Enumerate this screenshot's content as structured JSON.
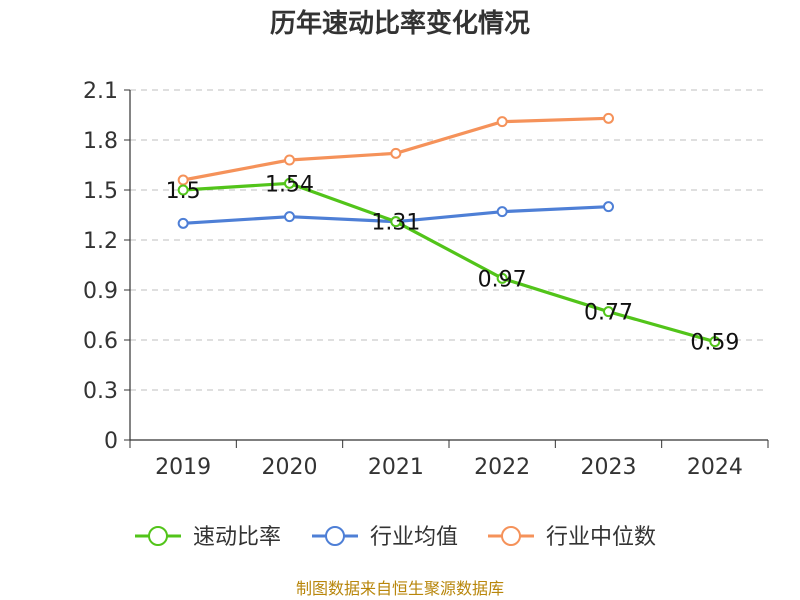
{
  "chart_data": {
    "type": "line",
    "title": "历年速动比率变化情况",
    "categories": [
      "2019",
      "2020",
      "2021",
      "2022",
      "2023",
      "2024"
    ],
    "y_ticks": [
      "0",
      "0.3",
      "0.6",
      "0.9",
      "1.2",
      "1.5",
      "1.8",
      "2.1"
    ],
    "ylim": [
      0,
      2.1
    ],
    "grid": true,
    "legend_position": "bottom",
    "series": [
      {
        "name": "速动比率",
        "color": "#52c41a",
        "values": [
          1.5,
          1.54,
          1.31,
          0.97,
          0.77,
          0.59
        ],
        "labels": [
          "1.5",
          "1.54",
          "1.31",
          "0.97",
          "0.77",
          "0.59"
        ]
      },
      {
        "name": "行业均值",
        "color": "#4e7fd6",
        "values": [
          1.3,
          1.34,
          1.31,
          1.37,
          1.4,
          null
        ]
      },
      {
        "name": "行业中位数",
        "color": "#f5925a",
        "values": [
          1.56,
          1.68,
          1.72,
          1.91,
          1.93,
          null
        ]
      }
    ]
  },
  "source_text": "制图数据来自恒生聚源数据库"
}
